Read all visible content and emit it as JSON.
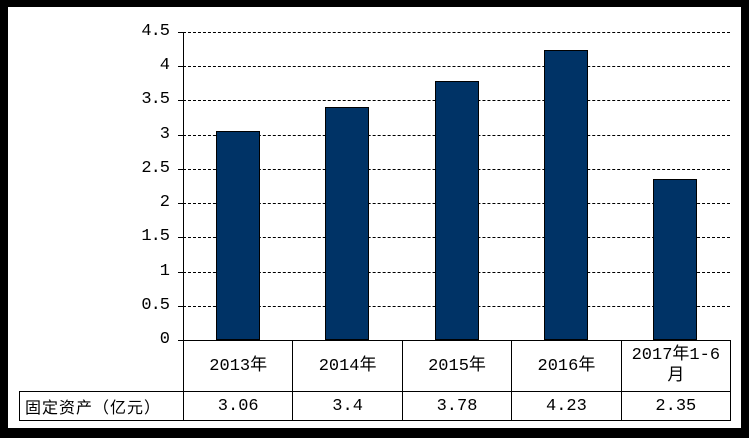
{
  "chart_data": {
    "type": "bar",
    "title": "",
    "xlabel": "",
    "ylabel": "",
    "categories": [
      "2013年",
      "2014年",
      "2015年",
      "2016年",
      "2017年1-6月"
    ],
    "values": [
      3.06,
      3.4,
      3.78,
      4.23,
      2.35
    ],
    "display_values": [
      "3.06",
      "3.4",
      "3.78",
      "4.23",
      "2.35"
    ],
    "series": [
      {
        "name": "固定资产（亿元）",
        "values": [
          3.06,
          3.4,
          3.78,
          4.23,
          2.35
        ]
      }
    ],
    "table_row_label": "固定资产（亿元）",
    "ylim": [
      0,
      4.5
    ],
    "ytick_step": 0.5,
    "ytick_labels": [
      "0",
      "0.5",
      "1",
      "1.5",
      "2",
      "2.5",
      "3",
      "3.5",
      "4",
      "4.5"
    ],
    "grid": "horizontal-dashed",
    "legend_position": "none",
    "colors": {
      "bar_fill": "#003366",
      "bar_border": "#000000",
      "axis": "#000000",
      "gridline": "#000000",
      "table_border": "#000000",
      "background": "#ffffff",
      "frame": "#000000",
      "text": "#000000"
    }
  }
}
